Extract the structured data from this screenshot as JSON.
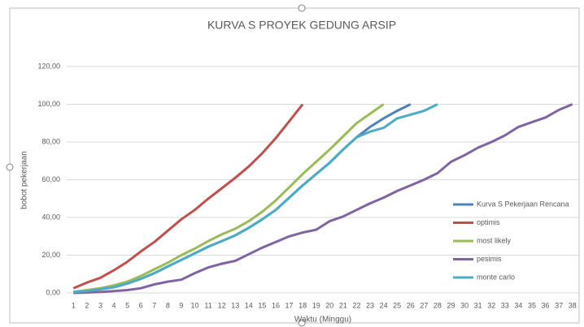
{
  "chart_data": {
    "type": "line",
    "title": "KURVA S PROYEK GEDUNG ARSIP",
    "ylabel": "bobot pekerjaan",
    "xlabel": "Waktu (Minggu)",
    "categories": [
      "1",
      "2",
      "3",
      "4",
      "5",
      "6",
      "7",
      "8",
      "9",
      "10",
      "11",
      "12",
      "13",
      "14",
      "15",
      "16",
      "17",
      "18",
      "19",
      "20",
      "21",
      "22",
      "23",
      "24",
      "25",
      "26",
      "27",
      "28",
      "29",
      "30",
      "31",
      "32",
      "33",
      "34",
      "35",
      "36",
      "37",
      "38"
    ],
    "ylim": [
      0,
      120
    ],
    "yticks": [
      {
        "value": 0,
        "label": "0,00"
      },
      {
        "value": 20,
        "label": "20,00"
      },
      {
        "value": 40,
        "label": "40,00"
      },
      {
        "value": 60,
        "label": "60,00"
      },
      {
        "value": 80,
        "label": "80,00"
      },
      {
        "value": 100,
        "label": "100,00"
      },
      {
        "value": 120,
        "label": "120,00"
      }
    ],
    "grid": true,
    "legend": "right",
    "series": [
      {
        "name": "Kurva S Pekerjaan Rencana",
        "color": "#4f81bd",
        "values": [
          0.5,
          1,
          2,
          3,
          5,
          7.5,
          10.5,
          14,
          17.5,
          21,
          24.5,
          27.5,
          30.5,
          34.5,
          39,
          44,
          50.5,
          57,
          63,
          69,
          76,
          82.5,
          88,
          92.5,
          96.5,
          100,
          null,
          null,
          null,
          null,
          null,
          null,
          null,
          null,
          null,
          null,
          null,
          null
        ]
      },
      {
        "name": "optimis",
        "color": "#c0504d",
        "values": [
          2.5,
          5.5,
          8,
          12,
          16.5,
          22,
          27,
          33,
          39,
          44,
          50,
          55.5,
          61,
          67,
          74,
          82,
          91,
          100,
          null,
          null,
          null,
          null,
          null,
          null,
          null,
          null,
          null,
          null,
          null,
          null,
          null,
          null,
          null,
          null,
          null,
          null,
          null,
          null
        ]
      },
      {
        "name": "most likely",
        "color": "#9bbb59",
        "values": [
          0.5,
          1.5,
          2.5,
          4,
          6,
          9,
          12.5,
          16,
          20,
          23.5,
          27.5,
          31,
          34,
          38,
          43,
          49,
          56,
          63,
          69.5,
          76,
          83,
          90,
          95,
          100,
          null,
          null,
          null,
          null,
          null,
          null,
          null,
          null,
          null,
          null,
          null,
          null,
          null,
          null
        ]
      },
      {
        "name": "pesimis",
        "color": "#8064a2",
        "values": [
          0,
          0.2,
          0.5,
          1,
          1.5,
          2.5,
          4.5,
          6,
          7,
          10.5,
          13.5,
          15.5,
          17,
          20.5,
          24,
          27,
          30,
          32,
          33.5,
          38,
          40.5,
          44,
          47.5,
          50.5,
          54,
          57,
          60,
          63.5,
          69.5,
          73,
          77,
          80,
          83.5,
          88,
          90.5,
          93,
          97,
          100
        ]
      },
      {
        "name": "monte carlo",
        "color": "#4bacc6",
        "values": [
          0.5,
          1,
          2,
          3,
          5,
          7.5,
          10.5,
          14,
          17.5,
          21,
          24.5,
          27.5,
          30.5,
          34.5,
          39,
          44,
          50.5,
          57,
          63,
          69,
          76,
          82.5,
          85.5,
          87.5,
          92.5,
          94.5,
          96.5,
          100,
          null,
          null,
          null,
          null,
          null,
          null,
          null,
          null,
          null,
          null
        ]
      }
    ]
  }
}
